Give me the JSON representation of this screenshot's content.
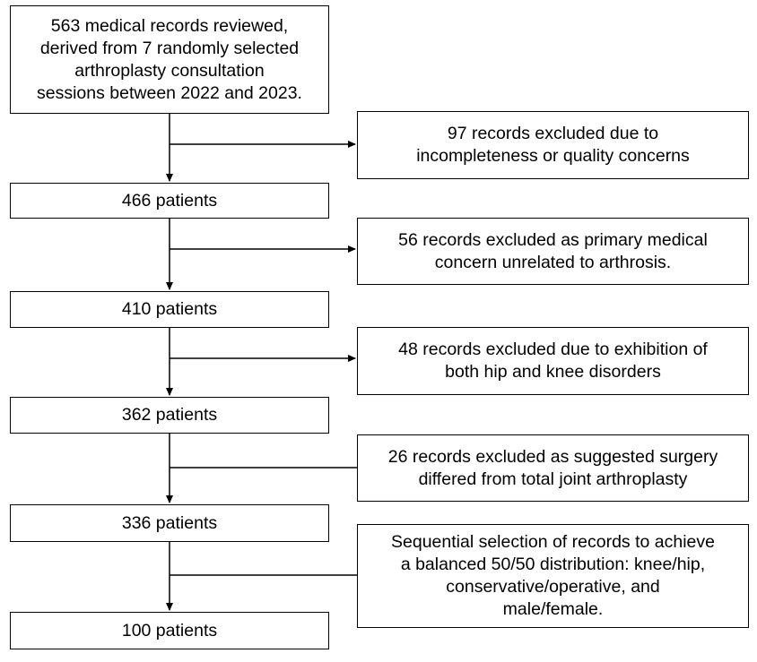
{
  "flow": {
    "start": "563 medical records reviewed,\nderived from 7 randomly selected\narthroplasty consultation\nsessions between 2022 and 2023.",
    "patients": [
      "466 patients",
      "410 patients",
      "362 patients",
      "336 patients",
      "100 patients"
    ],
    "exclusions": [
      "97 records excluded due to\nincompleteness or quality concerns",
      "56 records excluded as primary medical\nconcern unrelated to arthrosis.",
      "48 records excluded due to exhibition of\nboth hip and knee disorders",
      "26 records excluded as suggested surgery\ndiffered from total joint arthroplasty",
      "Sequential selection of records to achieve\na balanced 50/50 distribution: knee/hip,\nconservative/operative, and\nmale/female."
    ]
  }
}
